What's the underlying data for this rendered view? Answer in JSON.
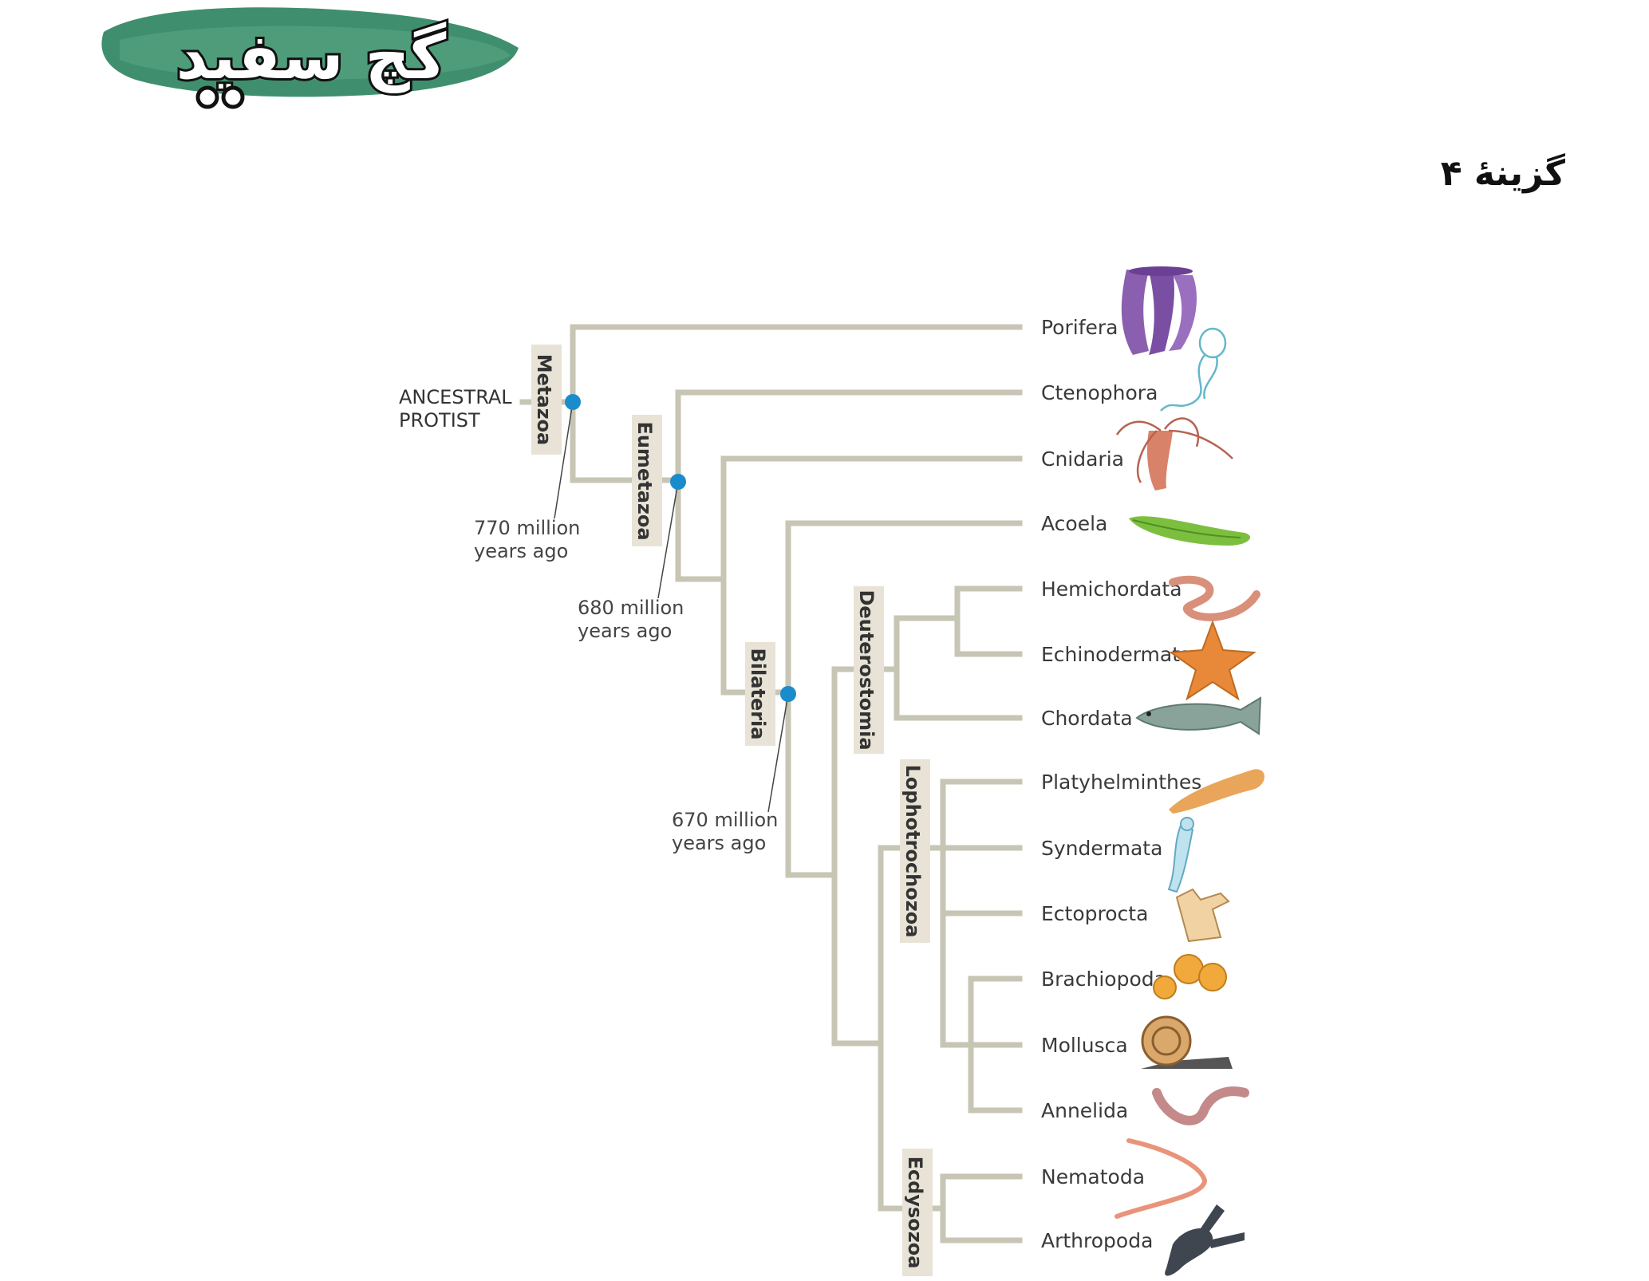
{
  "logo": {
    "text": "گچ سفید"
  },
  "answer": "گزینهٔ ۴",
  "root_label": [
    "ANCESTRAL",
    "PROTIST"
  ],
  "clades": {
    "metazoa": "Metazoa",
    "eumetazoa": "Eumetazoa",
    "bilateria": "Bilateria",
    "deuterostomia": "Deuterostomia",
    "lophotrochozoa": "Lophotrochozoa",
    "ecdysozoa": "Ecdysozoa"
  },
  "times": {
    "t770": [
      "770 million",
      "years ago"
    ],
    "t680": [
      "680 million",
      "years ago"
    ],
    "t670": [
      "670 million",
      "years ago"
    ]
  },
  "taxa": [
    "Porifera",
    "Ctenophora",
    "Cnidaria",
    "Acoela",
    "Hemichordata",
    "Echinodermata",
    "Chordata",
    "Platyhelminthes",
    "Syndermata",
    "Ectoprocta",
    "Brachiopoda",
    "Mollusca",
    "Annelida",
    "Nematoda",
    "Arthropoda"
  ],
  "colors": {
    "branch": "#c7c5b4",
    "node": "#1a8ccc",
    "label_box": "#e8e3d6",
    "logo_green": "#3f8f6f"
  }
}
